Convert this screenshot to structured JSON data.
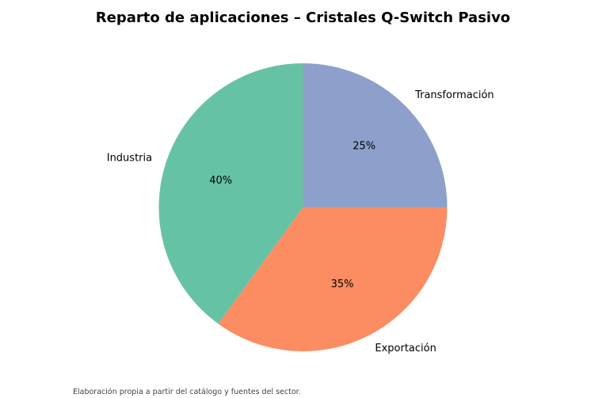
{
  "chart_data": {
    "type": "pie",
    "title": "Reparto de aplicaciones – Cristales Q-Switch Pasivo",
    "slices": [
      {
        "label": "Transformación",
        "value": 25,
        "pct_label": "25%",
        "color": "#8da0cb"
      },
      {
        "label": "Exportación",
        "value": 35,
        "pct_label": "35%",
        "color": "#fc8d62"
      },
      {
        "label": "Industria",
        "value": 40,
        "pct_label": "40%",
        "color": "#66c2a5"
      }
    ],
    "start_angle_deg": 90,
    "direction": "clockwise",
    "footnote": "Elaboración propia a partir del catálogo y fuentes del sector."
  }
}
